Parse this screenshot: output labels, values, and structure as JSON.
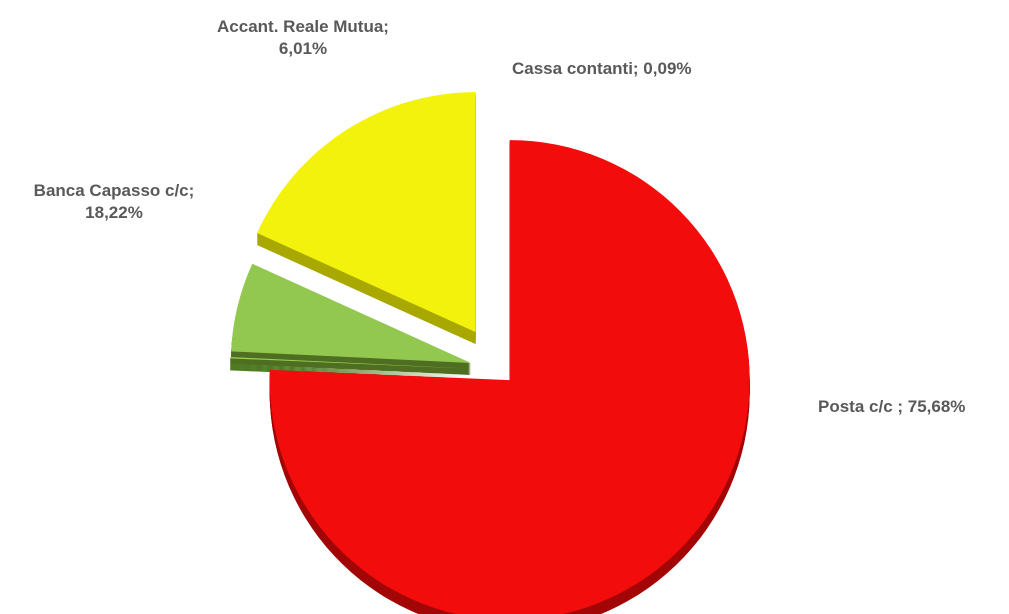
{
  "chart_data": {
    "type": "pie",
    "style": "3d-exploded",
    "slices": [
      {
        "name": "Posta c/c",
        "value": 75.68,
        "label_line1": "Posta c/c ; 75,68%",
        "label_line2": "",
        "color": "#f20c0c",
        "side_color": "#a30606"
      },
      {
        "name": "Cassa contanti",
        "value": 0.09,
        "label_line1": "Cassa contanti; 0,09%",
        "label_line2": "",
        "color": "#92d050",
        "side_color": "#4f7a22"
      },
      {
        "name": "Accant. Reale Mutua",
        "value": 6.01,
        "label_line1": "Accant. Reale Mutua;",
        "label_line2": "6,01%",
        "color": "#92c850",
        "side_color": "#4f6e22"
      },
      {
        "name": "Banca Capasso c/c",
        "value": 18.22,
        "label_line1": "Banca Capasso c/c;",
        "label_line2": "18,22%",
        "color": "#f2f20c",
        "side_color": "#a8a800"
      }
    ]
  }
}
